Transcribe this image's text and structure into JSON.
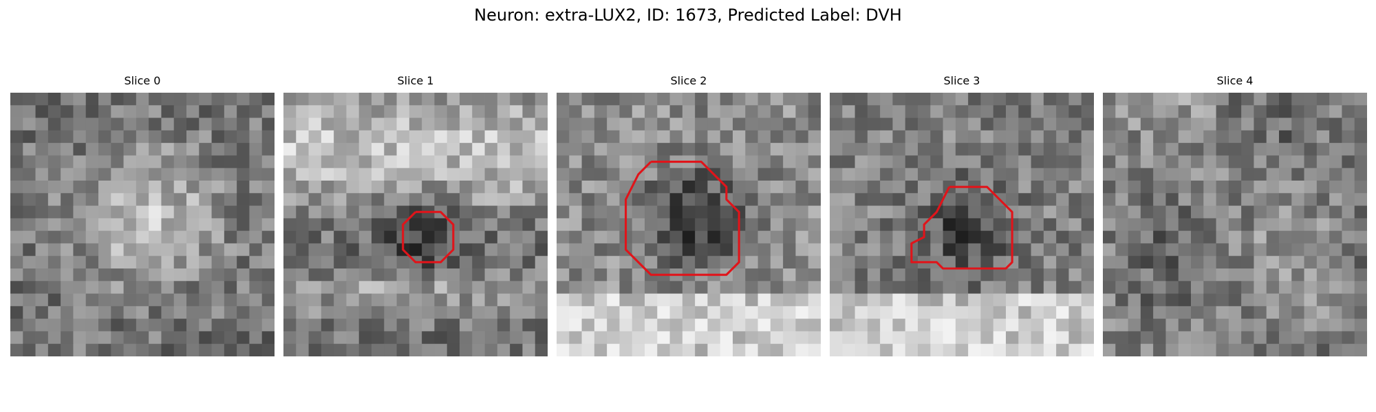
{
  "figure": {
    "title": "Neuron: extra-LUX2, ID: 1673, Predicted Label: DVH"
  },
  "panels": [
    {
      "title": "Slice 0",
      "seed": 11,
      "pattern": "bright-center",
      "contour": []
    },
    {
      "title": "Slice 1",
      "seed": 23,
      "pattern": "dark-center-ring",
      "contour": [
        [
          10.5,
          9.5
        ],
        [
          12.5,
          9.5
        ],
        [
          13.5,
          10.5
        ],
        [
          13.5,
          12.5
        ],
        [
          12.5,
          13.5
        ],
        [
          10.5,
          13.5
        ],
        [
          9.5,
          12.5
        ],
        [
          9.5,
          10.5
        ],
        [
          10.5,
          9.5
        ]
      ]
    },
    {
      "title": "Slice 2",
      "seed": 37,
      "pattern": "dark-blob",
      "contour": [
        [
          7.5,
          5.5
        ],
        [
          11.5,
          5.5
        ],
        [
          12.5,
          6.5
        ],
        [
          13.5,
          7.5
        ],
        [
          13.5,
          8.5
        ],
        [
          14.5,
          9.5
        ],
        [
          14.5,
          13.5
        ],
        [
          13.5,
          14.5
        ],
        [
          7.5,
          14.5
        ],
        [
          6.5,
          13.5
        ],
        [
          5.5,
          12.5
        ],
        [
          5.5,
          8.5
        ],
        [
          6.5,
          6.5
        ],
        [
          7.5,
          5.5
        ]
      ]
    },
    {
      "title": "Slice 3",
      "seed": 53,
      "pattern": "dark-blob-bright-bottom",
      "contour": [
        [
          9.5,
          7.5
        ],
        [
          12.5,
          7.5
        ],
        [
          13.5,
          8.5
        ],
        [
          14.5,
          9.5
        ],
        [
          14.5,
          13.5
        ],
        [
          14.0,
          14.0
        ],
        [
          9.0,
          14.0
        ],
        [
          8.5,
          13.5
        ],
        [
          6.5,
          13.5
        ],
        [
          6.5,
          12.0
        ],
        [
          7.5,
          11.5
        ],
        [
          7.5,
          10.5
        ],
        [
          8.5,
          9.5
        ],
        [
          9.5,
          7.5
        ]
      ]
    },
    {
      "title": "Slice 4",
      "seed": 71,
      "pattern": "noisy",
      "contour": []
    }
  ],
  "colors": {
    "contour": "#e0141a",
    "background": "#ffffff"
  }
}
